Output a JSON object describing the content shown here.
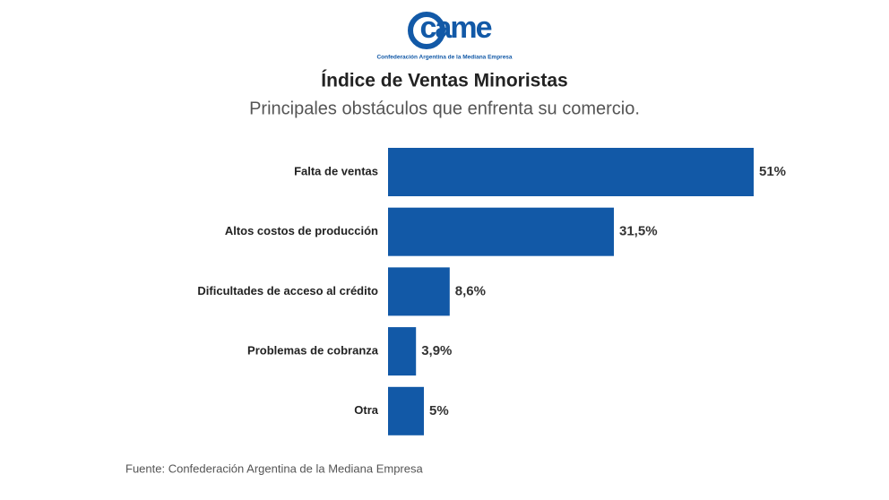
{
  "logo": "came",
  "logo_caption": "Confederación Argentina de la Mediana Empresa",
  "chart_data": {
    "type": "bar",
    "orientation": "horizontal",
    "title": "Índice de Ventas Minoristas",
    "subtitle": "Principales obstáculos que enfrenta su comercio.",
    "categories": [
      "Falta de ventas",
      "Altos costos de producción",
      "Dificultades de acceso al crédito",
      "Problemas de cobranza",
      "Otra"
    ],
    "values": [
      51,
      31.5,
      8.6,
      3.9,
      5
    ],
    "value_labels": [
      "51%",
      "31,5%",
      "8,6%",
      "3,9%",
      "5%"
    ],
    "color": "#1259a7",
    "source": "Fuente: Confederación Argentina de la Mediana Empresa"
  }
}
